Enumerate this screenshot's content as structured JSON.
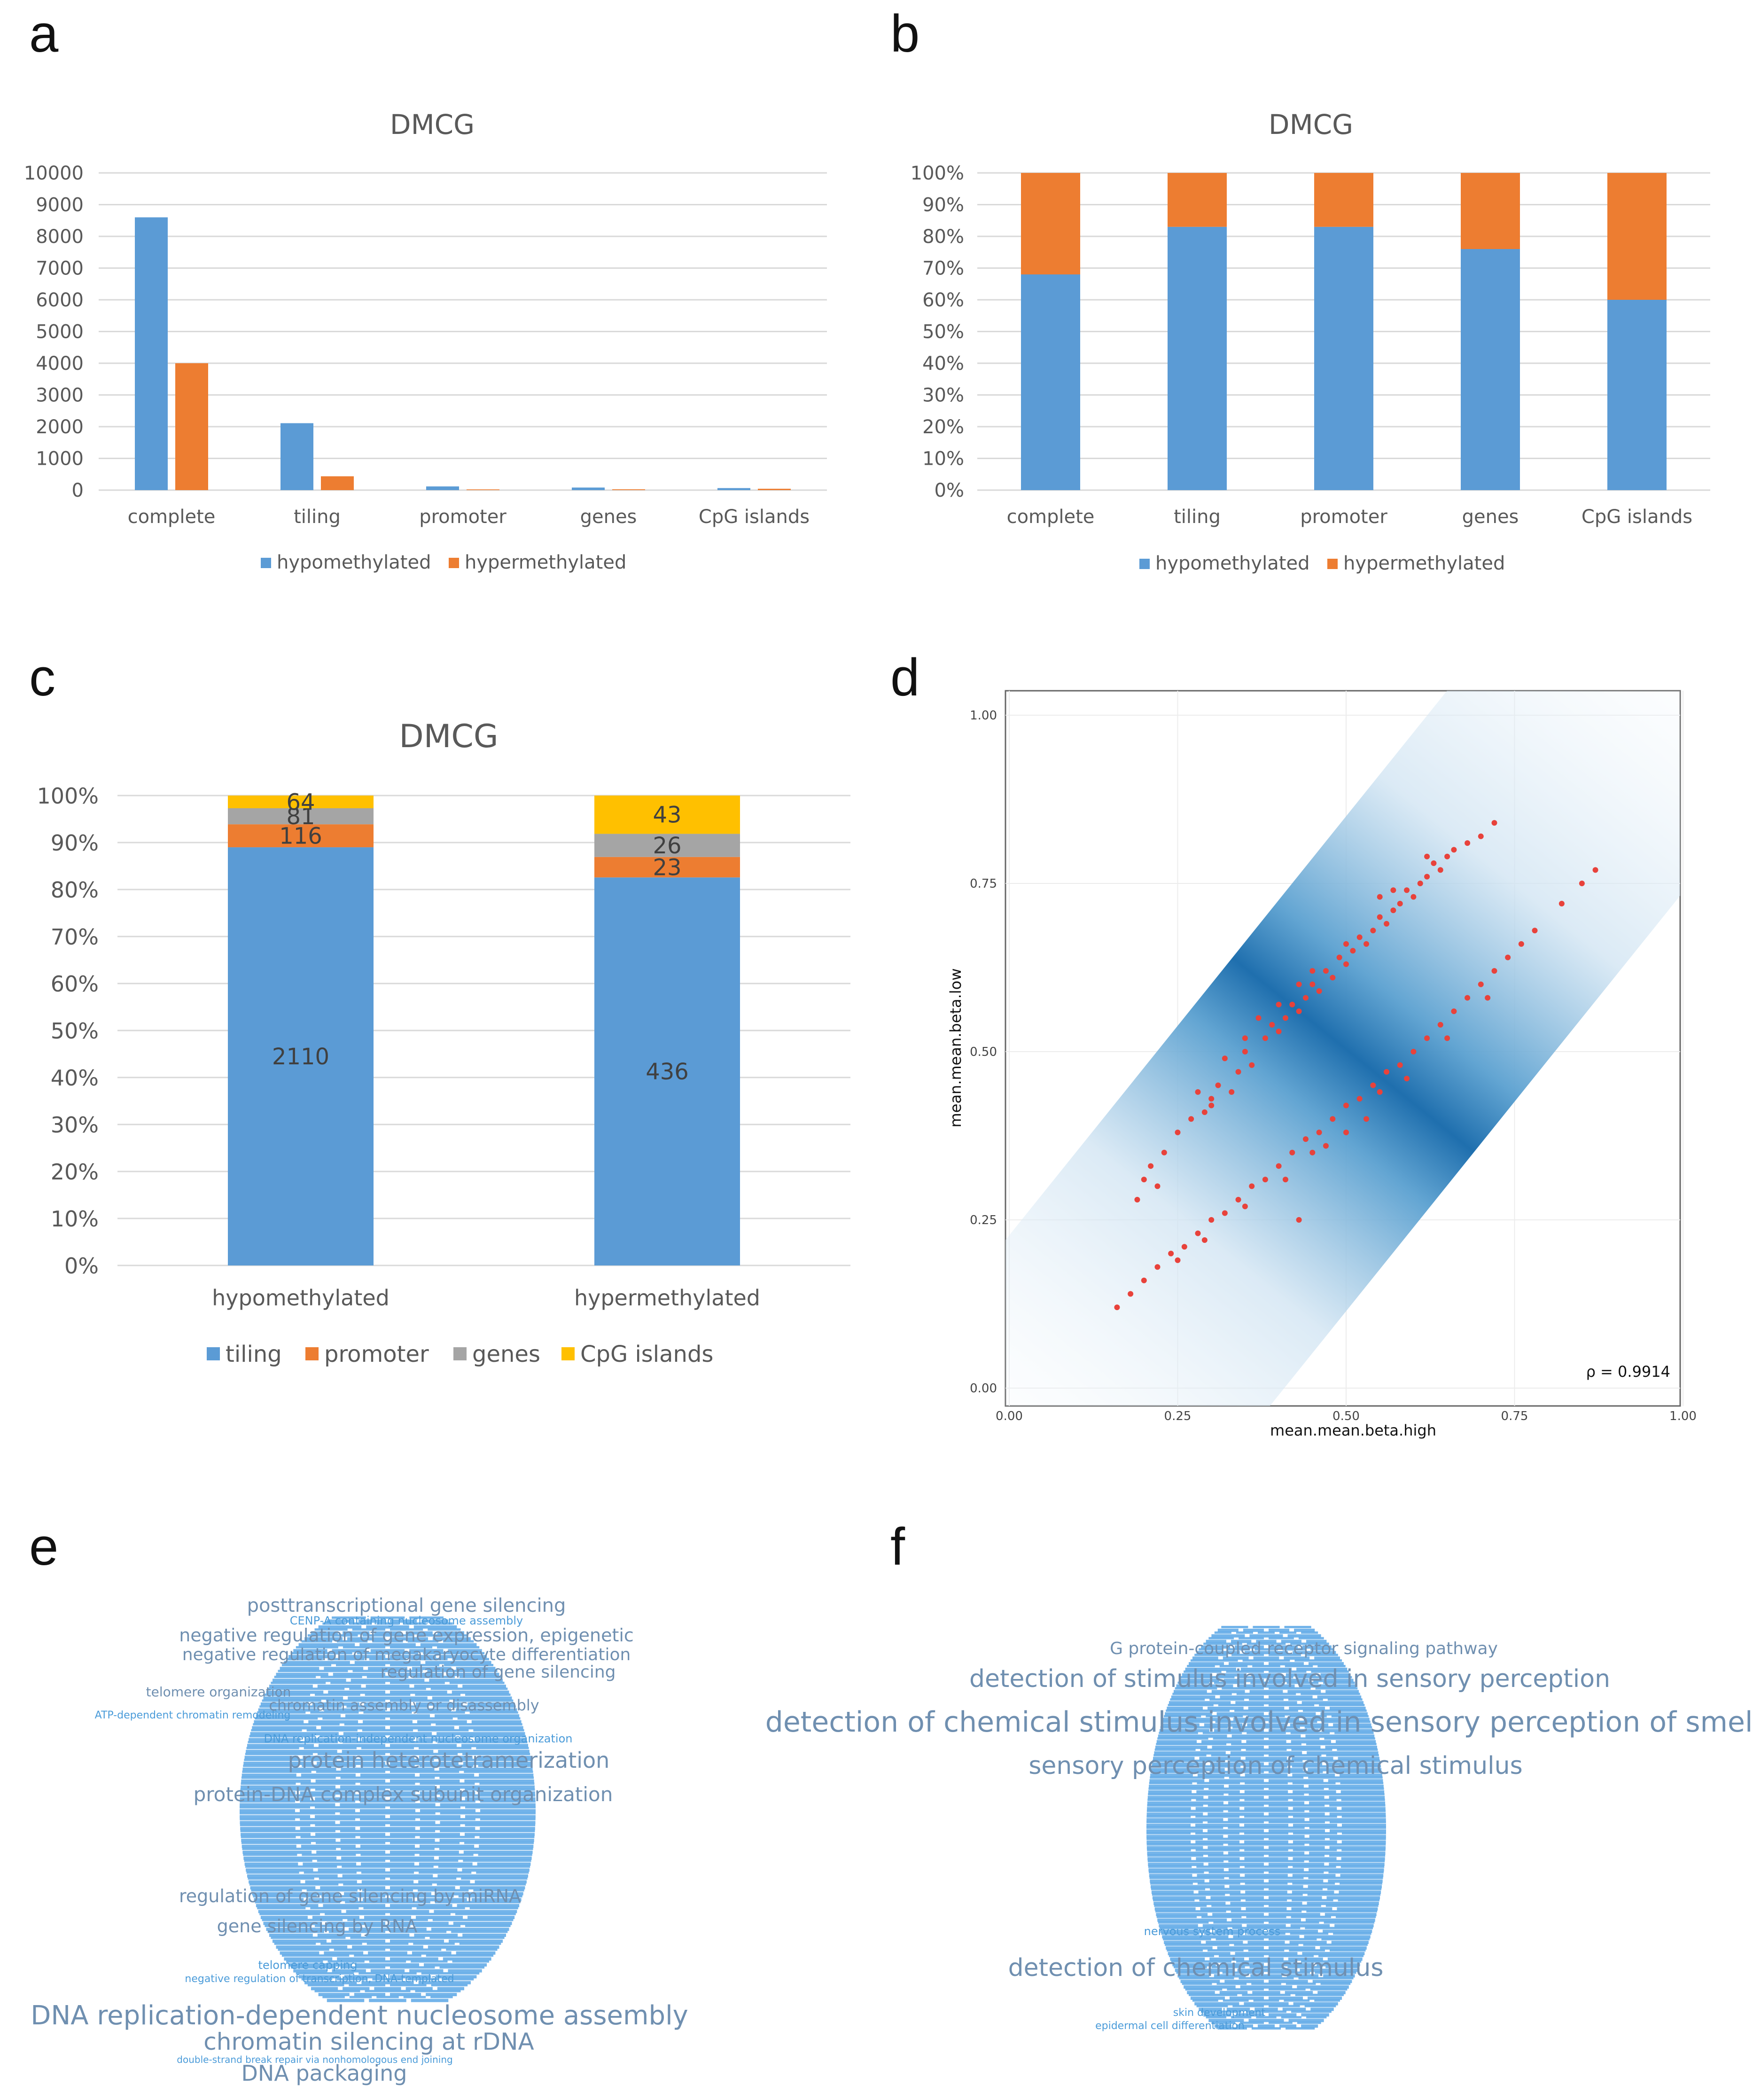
{
  "panel_letters": [
    "a",
    "b",
    "c",
    "d",
    "e",
    "f"
  ],
  "colors": {
    "blue": "#5b9bd5",
    "orange": "#ed7d31",
    "gray": "#a5a5a5",
    "yellow": "#ffc000",
    "red": "#e8423b",
    "density": "#1f77b4"
  },
  "chart_data": [
    {
      "id": "a",
      "type": "bar",
      "title": "DMCG",
      "categories": [
        "complete",
        "tiling",
        "promoter",
        "genes",
        "CpG islands"
      ],
      "series": [
        {
          "name": "hypomethylated",
          "color": "#5b9bd5",
          "values": [
            8600,
            2110,
            116,
            81,
            64
          ]
        },
        {
          "name": "hypermethylated",
          "color": "#ed7d31",
          "values": [
            4000,
            436,
            23,
            26,
            43
          ]
        }
      ],
      "ylim": [
        0,
        10000
      ],
      "yticks": [
        "0",
        "1000",
        "2000",
        "3000",
        "4000",
        "5000",
        "6000",
        "7000",
        "8000",
        "9000",
        "10000"
      ],
      "legend_position": "bottom"
    },
    {
      "id": "b",
      "type": "bar",
      "stacked": "percent",
      "title": "DMCG",
      "categories": [
        "complete",
        "tiling",
        "promoter",
        "genes",
        "CpG islands"
      ],
      "series": [
        {
          "name": "hypomethylated",
          "color": "#5b9bd5",
          "values": [
            68,
            83,
            83,
            76,
            60
          ]
        },
        {
          "name": "hypermethylated",
          "color": "#ed7d31",
          "values": [
            32,
            17,
            17,
            24,
            40
          ]
        }
      ],
      "ylim": [
        0,
        100
      ],
      "yticks": [
        "0%",
        "10%",
        "20%",
        "30%",
        "40%",
        "50%",
        "60%",
        "70%",
        "80%",
        "90%",
        "100%"
      ],
      "legend_position": "bottom"
    },
    {
      "id": "c",
      "type": "bar",
      "stacked": "percent",
      "title": "DMCG",
      "categories": [
        "hypomethylated",
        "hypermethylated"
      ],
      "series": [
        {
          "name": "tiling",
          "color": "#5b9bd5",
          "values": [
            2110,
            436
          ]
        },
        {
          "name": "promoter",
          "color": "#ed7d31",
          "values": [
            116,
            23
          ]
        },
        {
          "name": "genes",
          "color": "#a5a5a5",
          "values": [
            81,
            26
          ]
        },
        {
          "name": "CpG islands",
          "color": "#ffc000",
          "values": [
            64,
            43
          ]
        }
      ],
      "data_labels": [
        {
          "tiling": "2110",
          "promoter": "116",
          "genes": "81",
          "CpG islands": "64"
        },
        {
          "tiling": "436",
          "promoter": "23",
          "genes": "26",
          "CpG islands": "43"
        }
      ],
      "ylim": [
        0,
        100
      ],
      "yticks": [
        "0%",
        "10%",
        "20%",
        "30%",
        "40%",
        "50%",
        "60%",
        "70%",
        "80%",
        "90%",
        "100%"
      ],
      "legend_position": "bottom"
    },
    {
      "id": "d",
      "type": "scatter",
      "xlabel": "mean.mean.beta.high",
      "ylabel": "mean.mean.beta.low",
      "xlim": [
        0,
        1
      ],
      "ylim": [
        0,
        1
      ],
      "xticks": [
        "0.00",
        "0.25",
        "0.50",
        "0.75",
        "1.00"
      ],
      "yticks": [
        "0.00",
        "0.25",
        "0.50",
        "0.75",
        "1.00"
      ],
      "annotation": "ρ = 0.9914",
      "background": "density along diagonal",
      "points": [
        [
          0.2,
          0.31
        ],
        [
          0.21,
          0.33
        ],
        [
          0.22,
          0.3
        ],
        [
          0.23,
          0.35
        ],
        [
          0.19,
          0.28
        ],
        [
          0.25,
          0.38
        ],
        [
          0.27,
          0.4
        ],
        [
          0.29,
          0.41
        ],
        [
          0.3,
          0.43
        ],
        [
          0.31,
          0.45
        ],
        [
          0.33,
          0.44
        ],
        [
          0.34,
          0.47
        ],
        [
          0.35,
          0.5
        ],
        [
          0.36,
          0.48
        ],
        [
          0.38,
          0.52
        ],
        [
          0.39,
          0.54
        ],
        [
          0.4,
          0.53
        ],
        [
          0.41,
          0.55
        ],
        [
          0.42,
          0.57
        ],
        [
          0.43,
          0.56
        ],
        [
          0.44,
          0.58
        ],
        [
          0.45,
          0.6
        ],
        [
          0.46,
          0.59
        ],
        [
          0.47,
          0.62
        ],
        [
          0.48,
          0.61
        ],
        [
          0.49,
          0.64
        ],
        [
          0.5,
          0.63
        ],
        [
          0.51,
          0.65
        ],
        [
          0.52,
          0.67
        ],
        [
          0.53,
          0.66
        ],
        [
          0.54,
          0.68
        ],
        [
          0.55,
          0.7
        ],
        [
          0.56,
          0.69
        ],
        [
          0.57,
          0.71
        ],
        [
          0.58,
          0.72
        ],
        [
          0.59,
          0.74
        ],
        [
          0.6,
          0.73
        ],
        [
          0.61,
          0.75
        ],
        [
          0.62,
          0.76
        ],
        [
          0.63,
          0.78
        ],
        [
          0.64,
          0.77
        ],
        [
          0.65,
          0.79
        ],
        [
          0.66,
          0.8
        ],
        [
          0.68,
          0.81
        ],
        [
          0.7,
          0.82
        ],
        [
          0.72,
          0.84
        ],
        [
          0.55,
          0.73
        ],
        [
          0.5,
          0.66
        ],
        [
          0.45,
          0.62
        ],
        [
          0.4,
          0.57
        ],
        [
          0.3,
          0.42
        ],
        [
          0.28,
          0.44
        ],
        [
          0.37,
          0.55
        ],
        [
          0.43,
          0.6
        ],
        [
          0.57,
          0.74
        ],
        [
          0.62,
          0.79
        ],
        [
          0.35,
          0.52
        ],
        [
          0.32,
          0.49
        ],
        [
          0.16,
          0.12
        ],
        [
          0.18,
          0.14
        ],
        [
          0.2,
          0.16
        ],
        [
          0.22,
          0.18
        ],
        [
          0.24,
          0.2
        ],
        [
          0.26,
          0.21
        ],
        [
          0.28,
          0.23
        ],
        [
          0.3,
          0.25
        ],
        [
          0.32,
          0.26
        ],
        [
          0.34,
          0.28
        ],
        [
          0.36,
          0.3
        ],
        [
          0.38,
          0.31
        ],
        [
          0.4,
          0.33
        ],
        [
          0.42,
          0.35
        ],
        [
          0.44,
          0.37
        ],
        [
          0.46,
          0.38
        ],
        [
          0.48,
          0.4
        ],
        [
          0.5,
          0.42
        ],
        [
          0.52,
          0.43
        ],
        [
          0.54,
          0.45
        ],
        [
          0.56,
          0.47
        ],
        [
          0.58,
          0.48
        ],
        [
          0.6,
          0.5
        ],
        [
          0.62,
          0.52
        ],
        [
          0.64,
          0.54
        ],
        [
          0.66,
          0.56
        ],
        [
          0.68,
          0.58
        ],
        [
          0.7,
          0.6
        ],
        [
          0.72,
          0.62
        ],
        [
          0.74,
          0.64
        ],
        [
          0.76,
          0.66
        ],
        [
          0.78,
          0.68
        ],
        [
          0.82,
          0.72
        ],
        [
          0.85,
          0.75
        ],
        [
          0.87,
          0.77
        ],
        [
          0.45,
          0.35
        ],
        [
          0.5,
          0.38
        ],
        [
          0.55,
          0.44
        ],
        [
          0.35,
          0.27
        ],
        [
          0.43,
          0.25
        ],
        [
          0.25,
          0.19
        ],
        [
          0.29,
          0.22
        ],
        [
          0.41,
          0.31
        ],
        [
          0.47,
          0.36
        ],
        [
          0.53,
          0.4
        ],
        [
          0.59,
          0.46
        ],
        [
          0.65,
          0.52
        ],
        [
          0.71,
          0.58
        ]
      ]
    }
  ],
  "wordcloud_e": {
    "large": [
      "posttranscriptional gene silencing",
      "negative regulation of gene expression, epigenetic",
      "negative regulation of megakaryocyte differentiation",
      "regulation of gene silencing",
      "telomere organization",
      "chromatin assembly or disassembly",
      "protein heterotetramerization",
      "protein-DNA complex subunit organization",
      "regulation of gene silencing by miRNA",
      "gene silencing by RNA",
      "DNA replication-dependent nucleosome assembly",
      "chromatin silencing at rDNA",
      "DNA packaging"
    ],
    "small": [
      "CENP-A containing nucleosome assembly",
      "ATP-dependent chromatin remodeling",
      "DNA replication-independent nucleosome organization",
      "telomere capping",
      "negative regulation of transcription, DNA-templated",
      "double-strand break repair via nonhomologous end joining"
    ]
  },
  "wordcloud_f": {
    "large": [
      "G protein-coupled receptor signaling pathway",
      "detection of stimulus involved in sensory perception",
      "detection of chemical stimulus involved in sensory perception of smell",
      "sensory perception of chemical stimulus",
      "detection of chemical stimulus"
    ],
    "small": [
      "nervous system process",
      "skin development",
      "epidermal cell differentiation"
    ]
  }
}
